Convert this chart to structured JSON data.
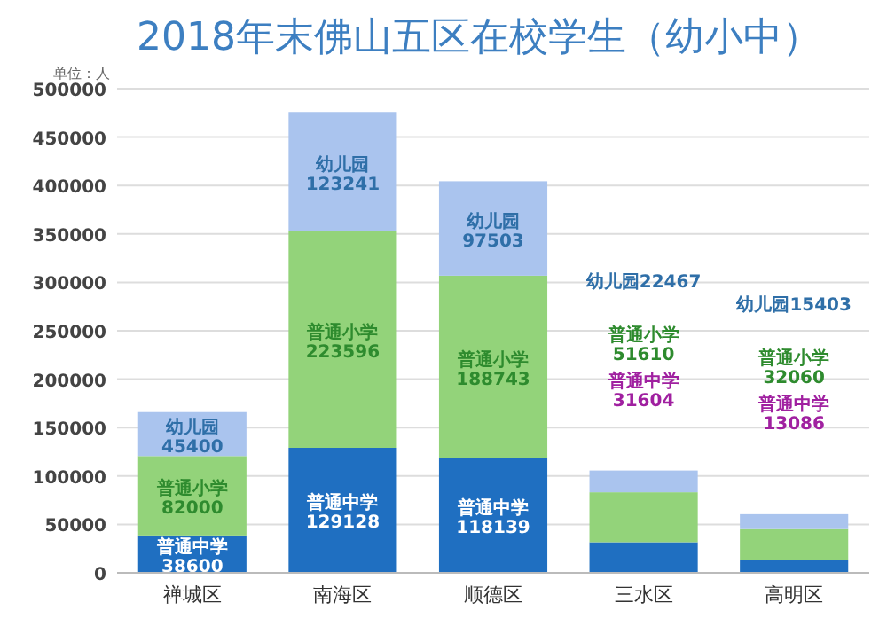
{
  "chart_data": {
    "type": "bar",
    "title": "2018年末佛山五区在校学生（幼小中）",
    "annotations": [
      "单位：人",
      "幼儿园22467",
      "普通小学\n51610",
      "普通中学\n31604",
      "幼儿园15403",
      "普通小学\n32060",
      "普通中学\n13086"
    ],
    "categories": [
      "禅城区",
      "南海区",
      "顺德区",
      "三水区",
      "高明区"
    ],
    "stacked": true,
    "grid": "y",
    "legend": false,
    "ylim": [
      0,
      500000
    ],
    "yticks": [
      0,
      50000,
      100000,
      150000,
      200000,
      250000,
      300000,
      350000,
      400000,
      450000,
      500000
    ],
    "series": [
      {
        "name": "普通中学",
        "color": "#1f6fc1",
        "values": [
          38600,
          129128,
          118139,
          31604,
          13086
        ],
        "value_labels": [
          "38600",
          "129128",
          "118139",
          null,
          null
        ]
      },
      {
        "name": "普通小学",
        "color": "#93d37a",
        "values": [
          82000,
          223596,
          188743,
          51610,
          32060
        ],
        "value_labels": [
          "82000",
          "223596",
          "188743",
          null,
          null
        ]
      },
      {
        "name": "幼儿园",
        "color": "#aac4ee",
        "values": [
          45400,
          123241,
          97503,
          22467,
          15403
        ],
        "value_labels": [
          "45400",
          "123241",
          "97503",
          null,
          null
        ]
      }
    ]
  }
}
